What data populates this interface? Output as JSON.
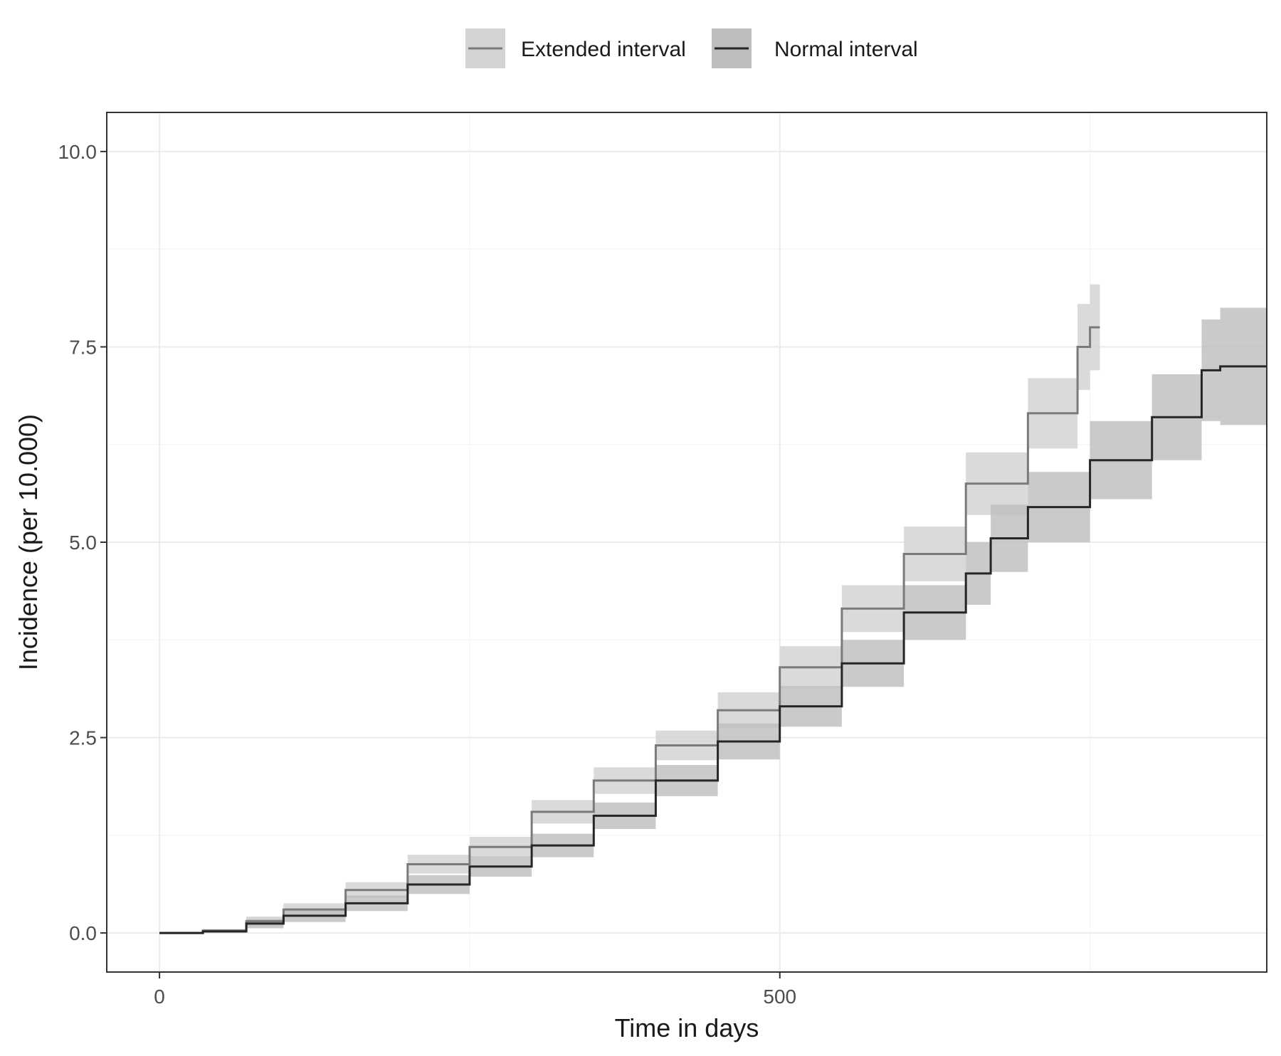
{
  "chart_data": {
    "type": "line",
    "step": true,
    "title": "",
    "xlabel": "Time in days",
    "ylabel": "Incidence (per 10.000)",
    "xlim": [
      -42.5,
      892.5
    ],
    "ylim": [
      -0.5,
      10.5
    ],
    "x_ticks": [
      0,
      500
    ],
    "x_tick_labels": [
      "0",
      "500"
    ],
    "x_minor_gridlines": [
      250,
      750
    ],
    "y_ticks": [
      0,
      2.5,
      5,
      7.5,
      10
    ],
    "y_tick_labels": [
      "0.0",
      "2.5",
      "5.0",
      "7.5",
      "10.0"
    ],
    "y_minor_gridlines": [
      1.25,
      3.75,
      6.25,
      8.75
    ],
    "grid": true,
    "legend_position": "top",
    "series": [
      {
        "name": "Extended interval",
        "color": "#7a7a7a",
        "ribbon_color": "#d3d3d3",
        "points": [
          {
            "x": 0,
            "y": 0,
            "lo": 0,
            "hi": 0
          },
          {
            "x": 35,
            "y": 0.03,
            "lo": 0.01,
            "hi": 0.05
          },
          {
            "x": 70,
            "y": 0.15,
            "lo": 0.09,
            "hi": 0.21
          },
          {
            "x": 100,
            "y": 0.3,
            "lo": 0.22,
            "hi": 0.38
          },
          {
            "x": 150,
            "y": 0.55,
            "lo": 0.45,
            "hi": 0.65
          },
          {
            "x": 200,
            "y": 0.88,
            "lo": 0.76,
            "hi": 1.0
          },
          {
            "x": 250,
            "y": 1.1,
            "lo": 0.97,
            "hi": 1.23
          },
          {
            "x": 300,
            "y": 1.55,
            "lo": 1.4,
            "hi": 1.7
          },
          {
            "x": 350,
            "y": 1.95,
            "lo": 1.78,
            "hi": 2.12
          },
          {
            "x": 400,
            "y": 2.4,
            "lo": 2.21,
            "hi": 2.59
          },
          {
            "x": 450,
            "y": 2.85,
            "lo": 2.62,
            "hi": 3.08
          },
          {
            "x": 500,
            "y": 3.4,
            "lo": 3.13,
            "hi": 3.67
          },
          {
            "x": 550,
            "y": 4.15,
            "lo": 3.85,
            "hi": 4.45
          },
          {
            "x": 600,
            "y": 4.85,
            "lo": 4.5,
            "hi": 5.2
          },
          {
            "x": 650,
            "y": 5.75,
            "lo": 5.35,
            "hi": 6.15
          },
          {
            "x": 700,
            "y": 6.65,
            "lo": 6.2,
            "hi": 7.1
          },
          {
            "x": 740,
            "y": 7.5,
            "lo": 6.95,
            "hi": 8.05
          },
          {
            "x": 750,
            "y": 7.75,
            "lo": 7.2,
            "hi": 8.3
          },
          {
            "x": 758,
            "y": 7.75,
            "lo": 7.2,
            "hi": 8.3
          }
        ]
      },
      {
        "name": "Normal interval",
        "color": "#262626",
        "ribbon_color": "#bdbdbd",
        "points": [
          {
            "x": 0,
            "y": 0,
            "lo": 0,
            "hi": 0
          },
          {
            "x": 35,
            "y": 0.02,
            "lo": 0.0,
            "hi": 0.04
          },
          {
            "x": 70,
            "y": 0.12,
            "lo": 0.06,
            "hi": 0.18
          },
          {
            "x": 100,
            "y": 0.22,
            "lo": 0.14,
            "hi": 0.3
          },
          {
            "x": 150,
            "y": 0.38,
            "lo": 0.28,
            "hi": 0.48
          },
          {
            "x": 200,
            "y": 0.62,
            "lo": 0.5,
            "hi": 0.74
          },
          {
            "x": 250,
            "y": 0.85,
            "lo": 0.72,
            "hi": 0.98
          },
          {
            "x": 300,
            "y": 1.12,
            "lo": 0.97,
            "hi": 1.27
          },
          {
            "x": 350,
            "y": 1.5,
            "lo": 1.33,
            "hi": 1.67
          },
          {
            "x": 400,
            "y": 1.95,
            "lo": 1.75,
            "hi": 2.15
          },
          {
            "x": 450,
            "y": 2.45,
            "lo": 2.22,
            "hi": 2.68
          },
          {
            "x": 500,
            "y": 2.9,
            "lo": 2.64,
            "hi": 3.16
          },
          {
            "x": 550,
            "y": 3.45,
            "lo": 3.15,
            "hi": 3.75
          },
          {
            "x": 600,
            "y": 4.1,
            "lo": 3.75,
            "hi": 4.45
          },
          {
            "x": 650,
            "y": 4.6,
            "lo": 4.2,
            "hi": 5.0
          },
          {
            "x": 670,
            "y": 5.05,
            "lo": 4.62,
            "hi": 5.48
          },
          {
            "x": 700,
            "y": 5.45,
            "lo": 5.0,
            "hi": 5.9
          },
          {
            "x": 750,
            "y": 6.05,
            "lo": 5.55,
            "hi": 6.55
          },
          {
            "x": 800,
            "y": 6.6,
            "lo": 6.05,
            "hi": 7.15
          },
          {
            "x": 840,
            "y": 7.2,
            "lo": 6.55,
            "hi": 7.85
          },
          {
            "x": 855,
            "y": 7.25,
            "lo": 6.5,
            "hi": 8.0
          },
          {
            "x": 892,
            "y": 7.25,
            "lo": 6.5,
            "hi": 8.0
          }
        ]
      }
    ]
  }
}
